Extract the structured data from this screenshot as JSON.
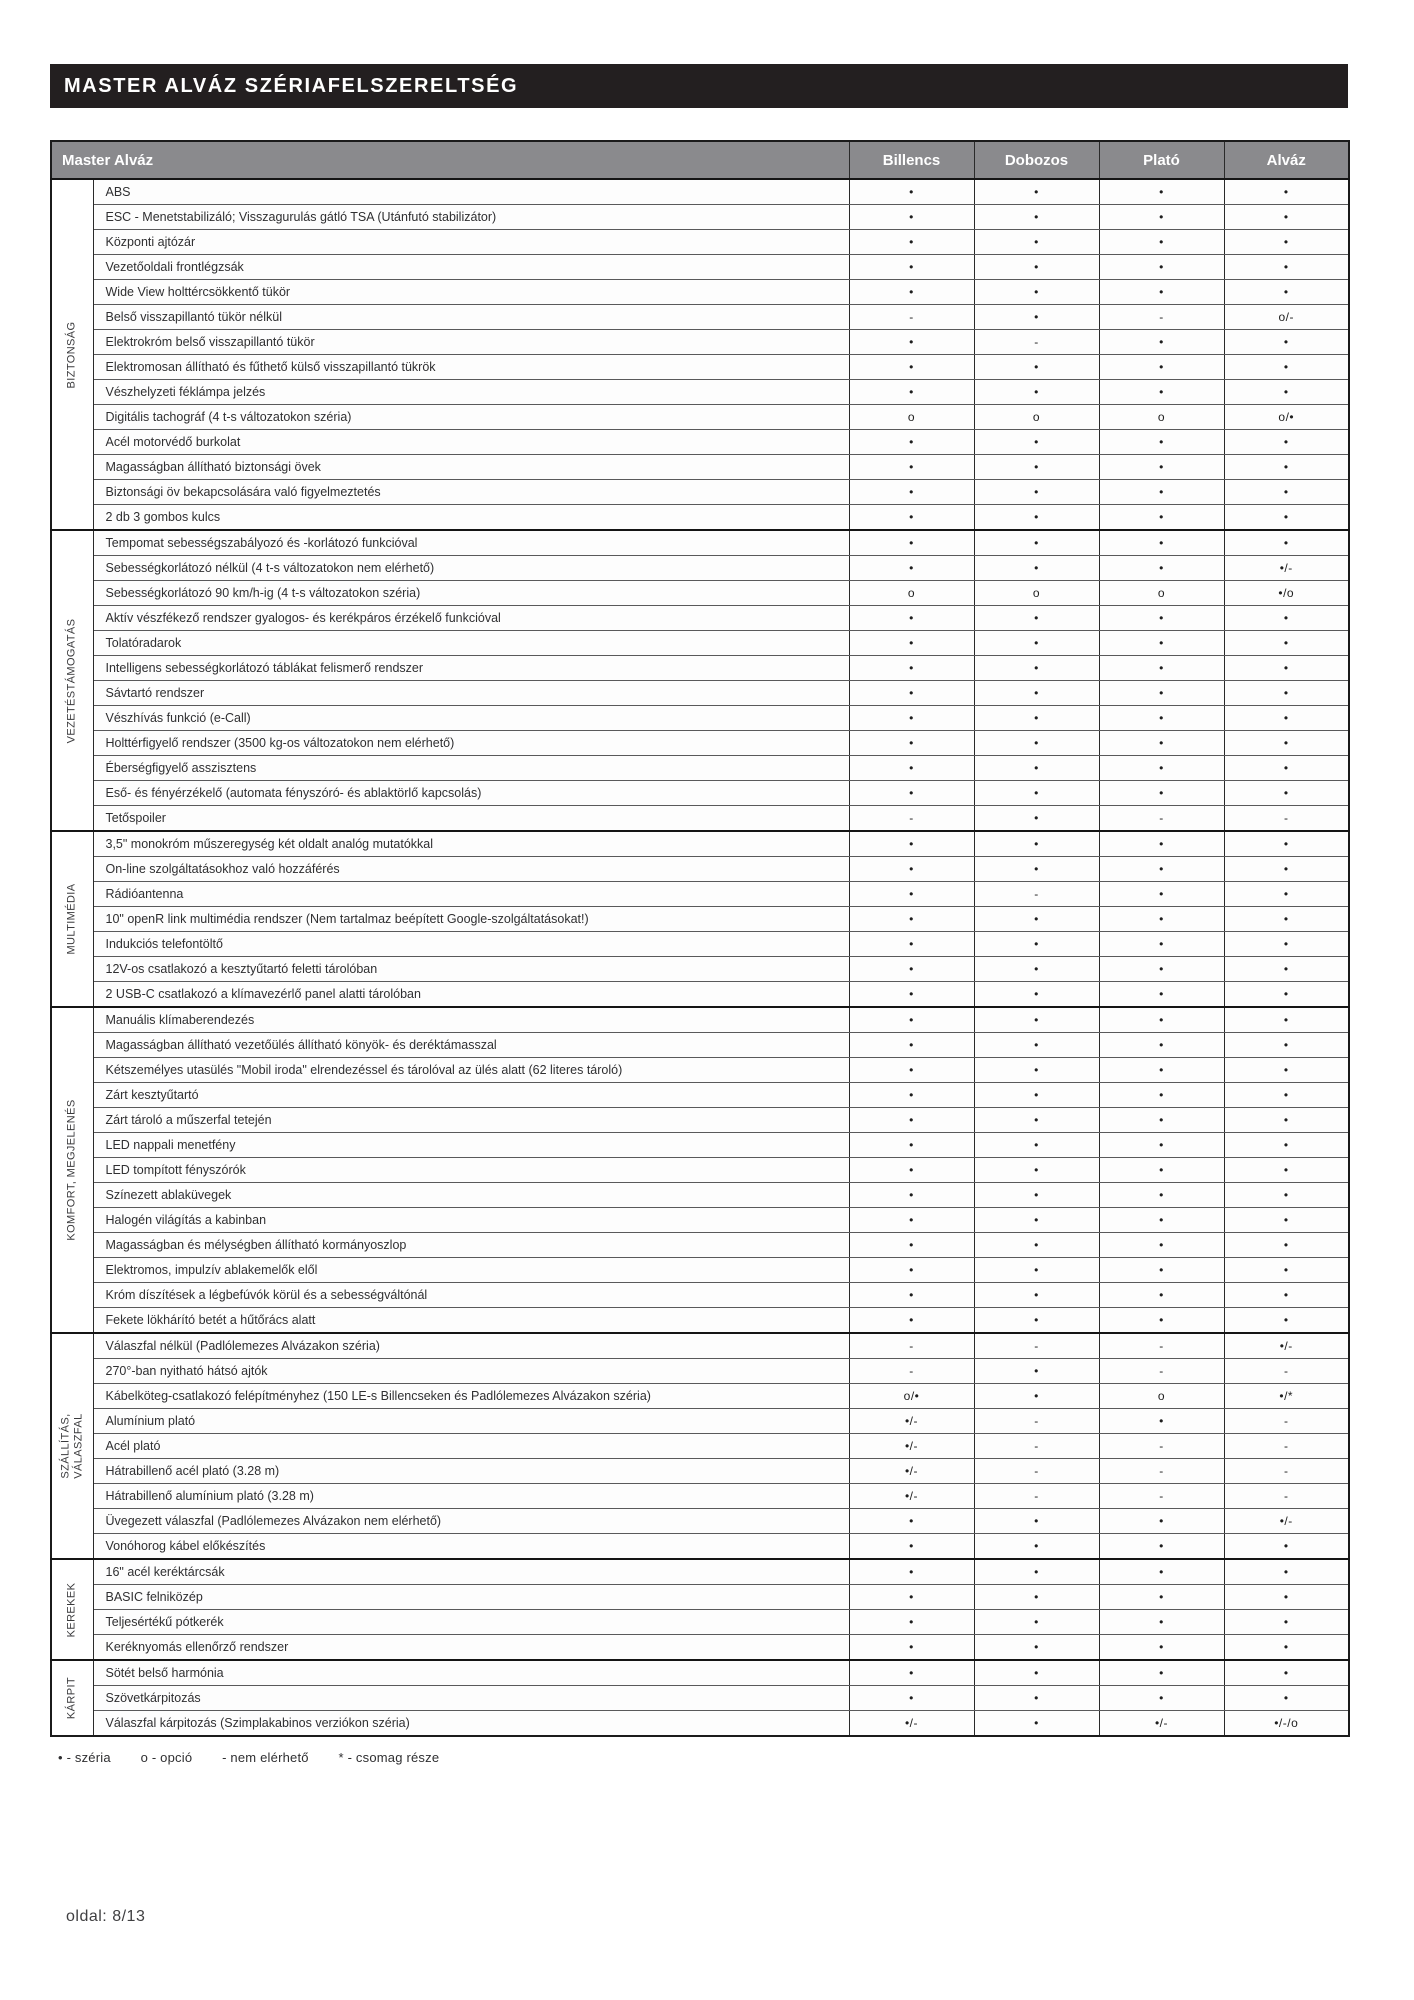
{
  "title": "MASTER ALVÁZ SZÉRIAFELSZERELTSÉG",
  "table": {
    "feature_header": "Master Alváz",
    "columns": [
      "Billencs",
      "Dobozos",
      "Plató",
      "Alváz"
    ],
    "sections": [
      {
        "label": "BIZTONSÁG",
        "rows": [
          {
            "feature": "ABS",
            "values": [
              "•",
              "•",
              "•",
              "•"
            ]
          },
          {
            "feature": "ESC - Menetstabilizáló; Visszagurulás gátló TSA (Utánfutó stabilizátor)",
            "values": [
              "•",
              "•",
              "•",
              "•"
            ]
          },
          {
            "feature": "Központi ajtózár",
            "values": [
              "•",
              "•",
              "•",
              "•"
            ]
          },
          {
            "feature": "Vezetőoldali frontlégzsák",
            "values": [
              "•",
              "•",
              "•",
              "•"
            ]
          },
          {
            "feature": "Wide View holttércsökkentő tükör",
            "values": [
              "•",
              "•",
              "•",
              "•"
            ]
          },
          {
            "feature": "Belső visszapillantó tükör nélkül",
            "values": [
              "-",
              "•",
              "-",
              "o/-"
            ]
          },
          {
            "feature": "Elektrokróm belső visszapillantó tükör",
            "values": [
              "•",
              "-",
              "•",
              "•"
            ]
          },
          {
            "feature": "Elektromosan állítható és fűthető külső visszapillantó tükrök",
            "values": [
              "•",
              "•",
              "•",
              "•"
            ]
          },
          {
            "feature": "Vészhelyzeti féklámpa jelzés",
            "values": [
              "•",
              "•",
              "•",
              "•"
            ]
          },
          {
            "feature": "Digitális tachográf (4 t-s változatokon széria)",
            "values": [
              "o",
              "o",
              "o",
              "o/•"
            ]
          },
          {
            "feature": "Acél motorvédő burkolat",
            "values": [
              "•",
              "•",
              "•",
              "•"
            ]
          },
          {
            "feature": "Magasságban állítható biztonsági övek",
            "values": [
              "•",
              "•",
              "•",
              "•"
            ]
          },
          {
            "feature": "Biztonsági öv bekapcsolására való figyelmeztetés",
            "values": [
              "•",
              "•",
              "•",
              "•"
            ]
          },
          {
            "feature": "2 db 3 gombos kulcs",
            "values": [
              "•",
              "•",
              "•",
              "•"
            ]
          }
        ]
      },
      {
        "label": "VEZETÉSTÁMOGATÁS",
        "rows": [
          {
            "feature": "Tempomat sebességszabályozó és -korlátozó funkcióval",
            "values": [
              "•",
              "•",
              "•",
              "•"
            ]
          },
          {
            "feature": "Sebességkorlátozó nélkül (4 t-s változatokon nem elérhető)",
            "values": [
              "•",
              "•",
              "•",
              "•/-"
            ]
          },
          {
            "feature": "Sebességkorlátozó 90 km/h-ig (4 t-s változatokon széria)",
            "values": [
              "o",
              "o",
              "o",
              "•/o"
            ]
          },
          {
            "feature": "Aktív vészfékező rendszer gyalogos- és kerékpáros érzékelő funkcióval",
            "values": [
              "•",
              "•",
              "•",
              "•"
            ]
          },
          {
            "feature": "Tolatóradarok",
            "values": [
              "•",
              "•",
              "•",
              "•"
            ]
          },
          {
            "feature": "Intelligens sebességkorlátozó táblákat felismerő rendszer",
            "values": [
              "•",
              "•",
              "•",
              "•"
            ]
          },
          {
            "feature": "Sávtartó rendszer",
            "values": [
              "•",
              "•",
              "•",
              "•"
            ]
          },
          {
            "feature": "Vészhívás funkció (e-Call)",
            "values": [
              "•",
              "•",
              "•",
              "•"
            ]
          },
          {
            "feature": "Holttérfigyelő rendszer (3500 kg-os változatokon nem elérhető)",
            "values": [
              "•",
              "•",
              "•",
              "•"
            ]
          },
          {
            "feature": "Éberségfigyelő asszisztens",
            "values": [
              "•",
              "•",
              "•",
              "•"
            ]
          },
          {
            "feature": "Eső- és fényérzékelő (automata fényszóró- és ablaktörlő kapcsolás)",
            "values": [
              "•",
              "•",
              "•",
              "•"
            ]
          },
          {
            "feature": "Tetőspoiler",
            "values": [
              "-",
              "•",
              "-",
              "-"
            ]
          }
        ]
      },
      {
        "label": "MULTIMÉDIA",
        "rows": [
          {
            "feature": "3,5\" monokróm műszeregység két oldalt analóg mutatókkal",
            "values": [
              "•",
              "•",
              "•",
              "•"
            ]
          },
          {
            "feature": "On-line szolgáltatásokhoz való hozzáférés",
            "values": [
              "•",
              "•",
              "•",
              "•"
            ]
          },
          {
            "feature": "Rádióantenna",
            "values": [
              "•",
              "-",
              "•",
              "•"
            ]
          },
          {
            "feature": "10\" openR link multimédia rendszer (Nem tartalmaz beépített Google-szolgáltatásokat!)",
            "values": [
              "•",
              "•",
              "•",
              "•"
            ]
          },
          {
            "feature": "Indukciós telefontöltő",
            "values": [
              "•",
              "•",
              "•",
              "•"
            ]
          },
          {
            "feature": "12V-os csatlakozó a kesztyűtartó feletti tárolóban",
            "values": [
              "•",
              "•",
              "•",
              "•"
            ]
          },
          {
            "feature": "2 USB-C csatlakozó a klímavezérlő panel alatti tárolóban",
            "values": [
              "•",
              "•",
              "•",
              "•"
            ]
          }
        ]
      },
      {
        "label": "KOMFORT, MEGJELENÉS",
        "rows": [
          {
            "feature": "Manuális klímaberendezés",
            "values": [
              "•",
              "•",
              "•",
              "•"
            ]
          },
          {
            "feature": "Magasságban állítható vezetőülés állítható könyök- és deréktámasszal",
            "values": [
              "•",
              "•",
              "•",
              "•"
            ]
          },
          {
            "feature": "Kétszemélyes utasülés \"Mobil iroda\" elrendezéssel és tárolóval az ülés alatt (62 literes tároló)",
            "values": [
              "•",
              "•",
              "•",
              "•"
            ]
          },
          {
            "feature": "Zárt kesztyűtartó",
            "values": [
              "•",
              "•",
              "•",
              "•"
            ]
          },
          {
            "feature": "Zárt tároló a műszerfal tetején",
            "values": [
              "•",
              "•",
              "•",
              "•"
            ]
          },
          {
            "feature": "LED nappali menetfény",
            "values": [
              "•",
              "•",
              "•",
              "•"
            ]
          },
          {
            "feature": "LED tompított fényszórók",
            "values": [
              "•",
              "•",
              "•",
              "•"
            ]
          },
          {
            "feature": "Színezett ablaküvegek",
            "values": [
              "•",
              "•",
              "•",
              "•"
            ]
          },
          {
            "feature": "Halogén világítás a kabinban",
            "values": [
              "•",
              "•",
              "•",
              "•"
            ]
          },
          {
            "feature": "Magasságban és mélységben állítható kormányoszlop",
            "values": [
              "•",
              "•",
              "•",
              "•"
            ]
          },
          {
            "feature": "Elektromos, impulzív ablakemelők elől",
            "values": [
              "•",
              "•",
              "•",
              "•"
            ]
          },
          {
            "feature": "Króm díszítések a légbefúvók körül és a sebességváltónál",
            "values": [
              "•",
              "•",
              "•",
              "•"
            ]
          },
          {
            "feature": "Fekete lökhárító betét a hűtőrács alatt",
            "values": [
              "•",
              "•",
              "•",
              "•"
            ]
          }
        ]
      },
      {
        "label": "SZÁLLÍTÁS,\nVÁLASZFAL",
        "rows": [
          {
            "feature": "Válaszfal nélkül (Padlólemezes Alvázakon széria)",
            "values": [
              "-",
              "-",
              "-",
              "•/-"
            ]
          },
          {
            "feature": "270°-ban nyitható hátsó ajtók",
            "values": [
              "-",
              "•",
              "-",
              "-"
            ]
          },
          {
            "feature": "Kábelköteg-csatlakozó felépítményhez (150 LE-s Billencseken és Padlólemezes Alvázakon széria)",
            "values": [
              "o/•",
              "•",
              "o",
              "•/*"
            ]
          },
          {
            "feature": "Alumínium plató",
            "values": [
              "•/-",
              "-",
              "•",
              "-"
            ]
          },
          {
            "feature": "Acél plató",
            "values": [
              "•/-",
              "-",
              "-",
              "-"
            ]
          },
          {
            "feature": "Hátrabillenő acél plató (3.28 m)",
            "values": [
              "•/-",
              "-",
              "-",
              "-"
            ]
          },
          {
            "feature": "Hátrabillenő alumínium plató (3.28 m)",
            "values": [
              "•/-",
              "-",
              "-",
              "-"
            ]
          },
          {
            "feature": "Üvegezett válaszfal (Padlólemezes Alvázakon nem elérhető)",
            "values": [
              "•",
              "•",
              "•",
              "•/-"
            ]
          },
          {
            "feature": "Vonóhorog kábel előkészítés",
            "values": [
              "•",
              "•",
              "•",
              "•"
            ]
          }
        ]
      },
      {
        "label": "KEREKEK",
        "rows": [
          {
            "feature": "16\" acél keréktárcsák",
            "values": [
              "•",
              "•",
              "•",
              "•"
            ]
          },
          {
            "feature": "BASIC felniközép",
            "values": [
              "•",
              "•",
              "•",
              "•"
            ]
          },
          {
            "feature": "Teljesértékű pótkerék",
            "values": [
              "•",
              "•",
              "•",
              "•"
            ]
          },
          {
            "feature": "Keréknyomás ellenőrző rendszer",
            "values": [
              "•",
              "•",
              "•",
              "•"
            ]
          }
        ]
      },
      {
        "label": "KÁRPIT",
        "rows": [
          {
            "feature": "Sötét belső harmónia",
            "values": [
              "•",
              "•",
              "•",
              "•"
            ]
          },
          {
            "feature": "Szövetkárpitozás",
            "values": [
              "•",
              "•",
              "•",
              "•"
            ]
          },
          {
            "feature": "Válaszfal kárpitozás (Szimplakabinos verziókon széria)",
            "values": [
              "•/-",
              "•",
              "•/-",
              "•/-/o"
            ]
          }
        ]
      }
    ]
  },
  "legend": {
    "items": [
      "• - széria",
      "o - opció",
      "- nem elérhető",
      "* - csomag része"
    ]
  },
  "footer": {
    "page_label": "oldal: 8/13"
  },
  "colors": {
    "title_bar_bg": "#231f20",
    "header_row_bg": "#8a8a8d",
    "border": "#2a2a2a"
  }
}
